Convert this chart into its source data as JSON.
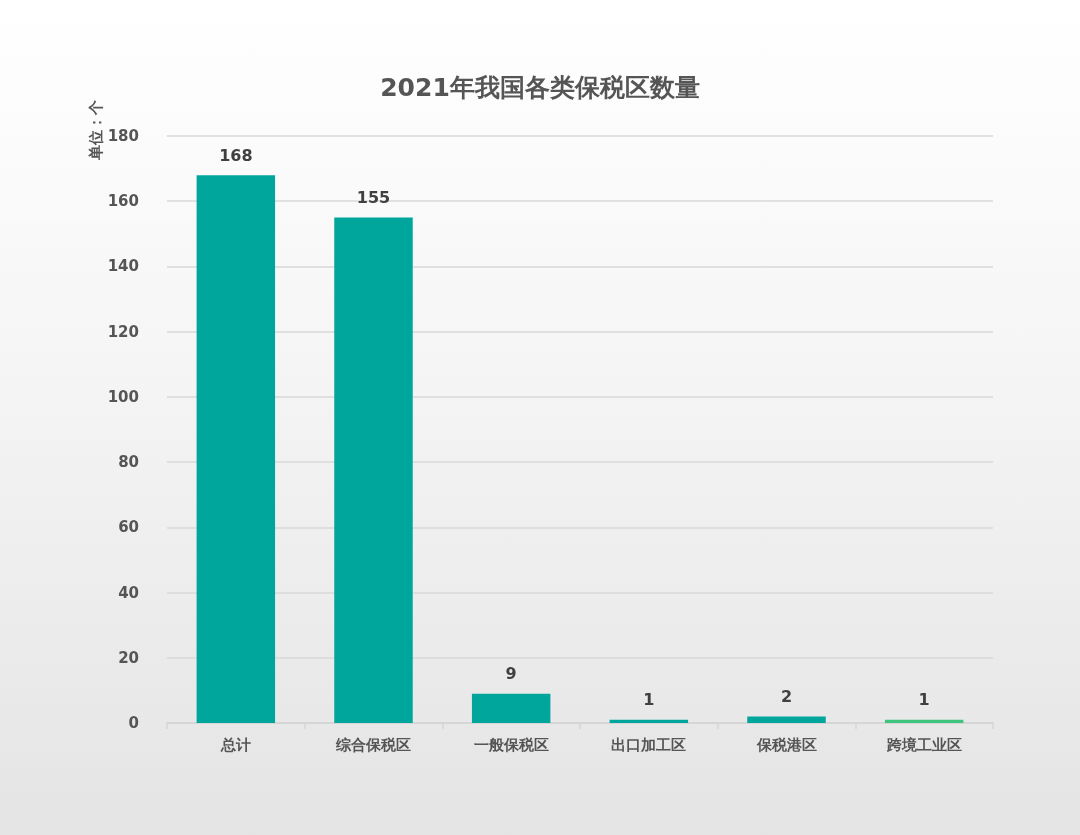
{
  "chart_data": {
    "type": "bar",
    "title": "2021年我国各类保税区数量",
    "ylabel": "单位：个",
    "categories": [
      "总计",
      "综合保税区",
      "一般保税区",
      "出口加工区",
      "保税港区",
      "跨境工业区"
    ],
    "values": [
      168,
      155,
      9,
      1,
      2,
      1
    ],
    "colors": [
      "#00a59c",
      "#00a59c",
      "#00a59c",
      "#00a59c",
      "#00a59c",
      "#3ec47c"
    ],
    "ylim": [
      0,
      180
    ],
    "yticks": [
      0,
      20,
      40,
      60,
      80,
      100,
      120,
      140,
      160,
      180
    ],
    "grid": "y",
    "data_labels": true
  }
}
